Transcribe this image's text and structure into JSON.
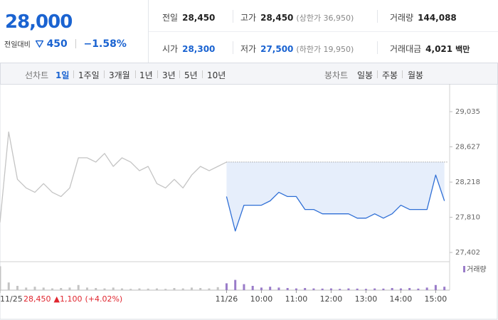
{
  "header": {
    "price": "28,000",
    "change_label": "전일대비",
    "change": "450",
    "change_pct": "−1.58%",
    "stats": [
      {
        "label": "전일",
        "value": "28,450"
      },
      {
        "label": "고가",
        "value": "28,450",
        "sub": "(상한가 36,950)"
      },
      {
        "label": "거래량",
        "value": "144,088"
      },
      {
        "label": "시가",
        "value": "28,300"
      },
      {
        "label": "저가",
        "value": "27,500",
        "sub": "(하한가 19,950)"
      },
      {
        "label": "거래대금",
        "value": "4,021",
        "sub": "백만"
      }
    ]
  },
  "tabs": {
    "line_label": "선차트",
    "line_periods": [
      "1일",
      "1주일",
      "3개월",
      "1년",
      "3년",
      "5년",
      "10년"
    ],
    "candle_label": "봉차트",
    "candle_periods": [
      "일봉",
      "주봉",
      "월봉"
    ]
  },
  "chart_data": {
    "type": "line",
    "x": [
      0,
      0.25,
      0.5,
      0.75,
      1,
      1.25,
      1.5,
      1.75,
      2,
      2.25,
      2.5,
      2.75,
      3,
      3.25,
      3.5,
      3.75,
      4,
      4.25,
      4.5,
      4.75,
      5,
      5.25,
      5.5,
      5.75,
      6,
      6.25,
      6.5,
      6.75,
      7,
      7.25,
      7.5,
      7.75,
      8,
      8.25,
      8.5,
      8.75,
      9,
      9.25,
      9.5,
      9.75,
      10,
      10.25,
      10.5,
      10.75,
      11,
      11.25,
      11.5,
      11.75,
      12,
      12.25,
      12.5,
      12.75
    ],
    "series": [
      {
        "name": "11/25",
        "color": "#c4c4c4",
        "values": [
          27750,
          28800,
          28250,
          28150,
          28100,
          28200,
          28100,
          28050,
          28150,
          28500,
          28500,
          28450,
          28550,
          28400,
          28500,
          28450,
          28350,
          28400,
          28200,
          28150,
          28250,
          28150,
          28300,
          28400,
          28350,
          28400,
          28450,
          null,
          null,
          null,
          null,
          null,
          null,
          null,
          null,
          null,
          null,
          null,
          null,
          null,
          null,
          null,
          null,
          null,
          null,
          null,
          null,
          null,
          null,
          null,
          null,
          null
        ]
      },
      {
        "name": "11/26",
        "color": "#2f6fd6",
        "values": [
          null,
          null,
          null,
          null,
          null,
          null,
          null,
          null,
          null,
          null,
          null,
          null,
          null,
          null,
          null,
          null,
          null,
          null,
          null,
          null,
          null,
          null,
          null,
          null,
          null,
          null,
          28050,
          27650,
          27950,
          27950,
          27950,
          28000,
          28100,
          28050,
          28050,
          27900,
          27900,
          27850,
          27850,
          27850,
          27850,
          27800,
          27800,
          27850,
          27800,
          27850,
          27950,
          27900,
          27900,
          27900,
          28300,
          28000
        ]
      }
    ],
    "reference": 28450,
    "volume": {
      "name": "거래량",
      "color": "#9a7cc9",
      "values": [
        28000,
        9000,
        5000,
        3000,
        4000,
        3000,
        2000,
        2500,
        3000,
        6000,
        3000,
        2500,
        2000,
        3000,
        2000,
        1500,
        2000,
        1800,
        2000,
        1500,
        2500,
        2000,
        3000,
        2500,
        2000,
        3500,
        8000,
        12000,
        7000,
        5000,
        3000,
        4000,
        3000,
        2500,
        2000,
        2500,
        2000,
        1800,
        2000,
        1500,
        2000,
        1800,
        1500,
        2000,
        1800,
        2500,
        2000,
        2500,
        1800,
        3000,
        6000,
        4000
      ]
    },
    "vlim": [
      0,
      30000
    ],
    "xlim": [
      0,
      12.9
    ],
    "xticks": [
      {
        "value": 0,
        "label": "11/25"
      },
      {
        "value": 6.5,
        "label": "11/26"
      },
      {
        "value": 7.5,
        "label": "10:00"
      },
      {
        "value": 8.5,
        "label": "11:00"
      },
      {
        "value": 9.5,
        "label": "12:00"
      },
      {
        "value": 10.5,
        "label": "13:00"
      },
      {
        "value": 11.5,
        "label": "14:00"
      },
      {
        "value": 12.5,
        "label": "15:00"
      }
    ],
    "ylim": [
      27295,
      29340
    ],
    "yticks": [
      {
        "value": 29035,
        "label": "29,035"
      },
      {
        "value": 28627,
        "label": "28,627"
      },
      {
        "value": 28218,
        "label": "28,218"
      },
      {
        "value": 27810,
        "label": "27,810"
      },
      {
        "value": 27402,
        "label": "27,402"
      }
    ],
    "grid": false,
    "prev_note": {
      "close": "28,450",
      "change": "▲1,100",
      "change_pct": "(+4.02%)"
    }
  }
}
